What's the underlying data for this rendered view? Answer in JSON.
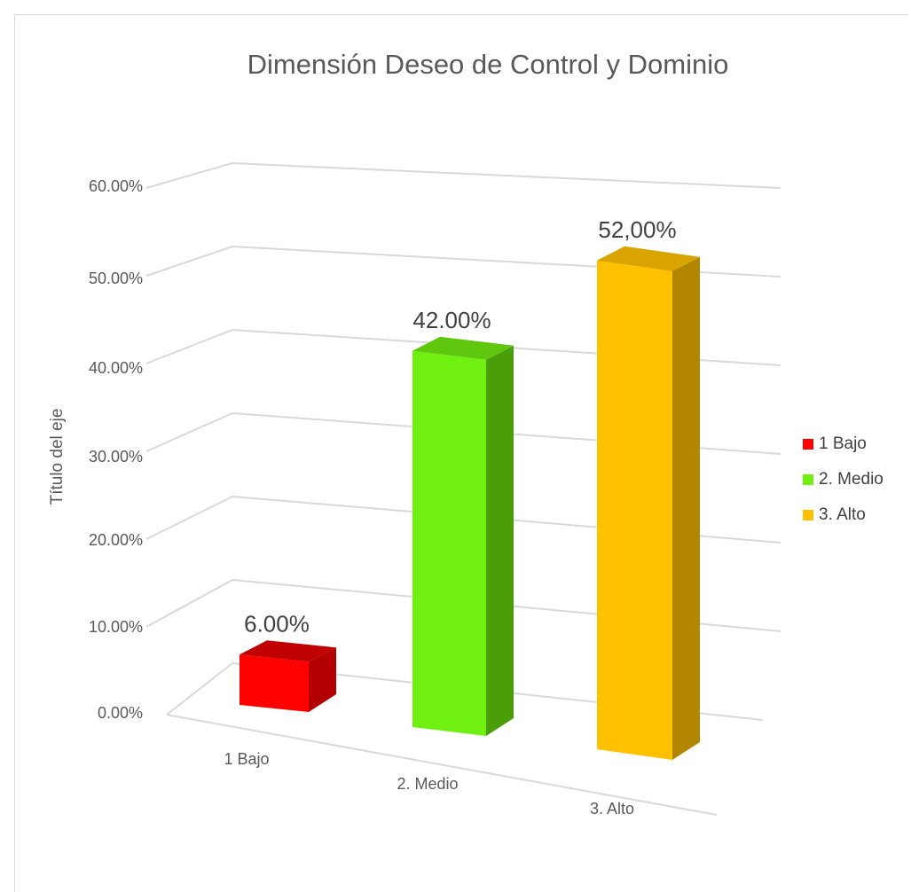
{
  "chart_data": {
    "type": "bar",
    "title": "Dimensión Deseo de Control y Dominio",
    "ylabel": "Título del eje",
    "xlabel": "",
    "categories": [
      "1 Bajo",
      "2. Medio",
      "3. Alto"
    ],
    "values": [
      6.0,
      42.0,
      52.0
    ],
    "data_labels": [
      "6.00%",
      "42.00%",
      "52,00%"
    ],
    "ylim": [
      0,
      60
    ],
    "yticks": [
      "0.00%",
      "10.00%",
      "20.00%",
      "30.00%",
      "40.00%",
      "50.00%",
      "60.00%"
    ],
    "colors": [
      "#ff0000",
      "#70f010",
      "#ffc000"
    ],
    "side_colors": [
      "#b30000",
      "#4a9e0a",
      "#b38600"
    ],
    "top_colors": [
      "#c00000",
      "#5fc80e",
      "#d9a300"
    ],
    "grid": true,
    "legend": {
      "position": "right",
      "entries": [
        "1 Bajo",
        "2. Medio",
        "3. Alto"
      ]
    }
  }
}
